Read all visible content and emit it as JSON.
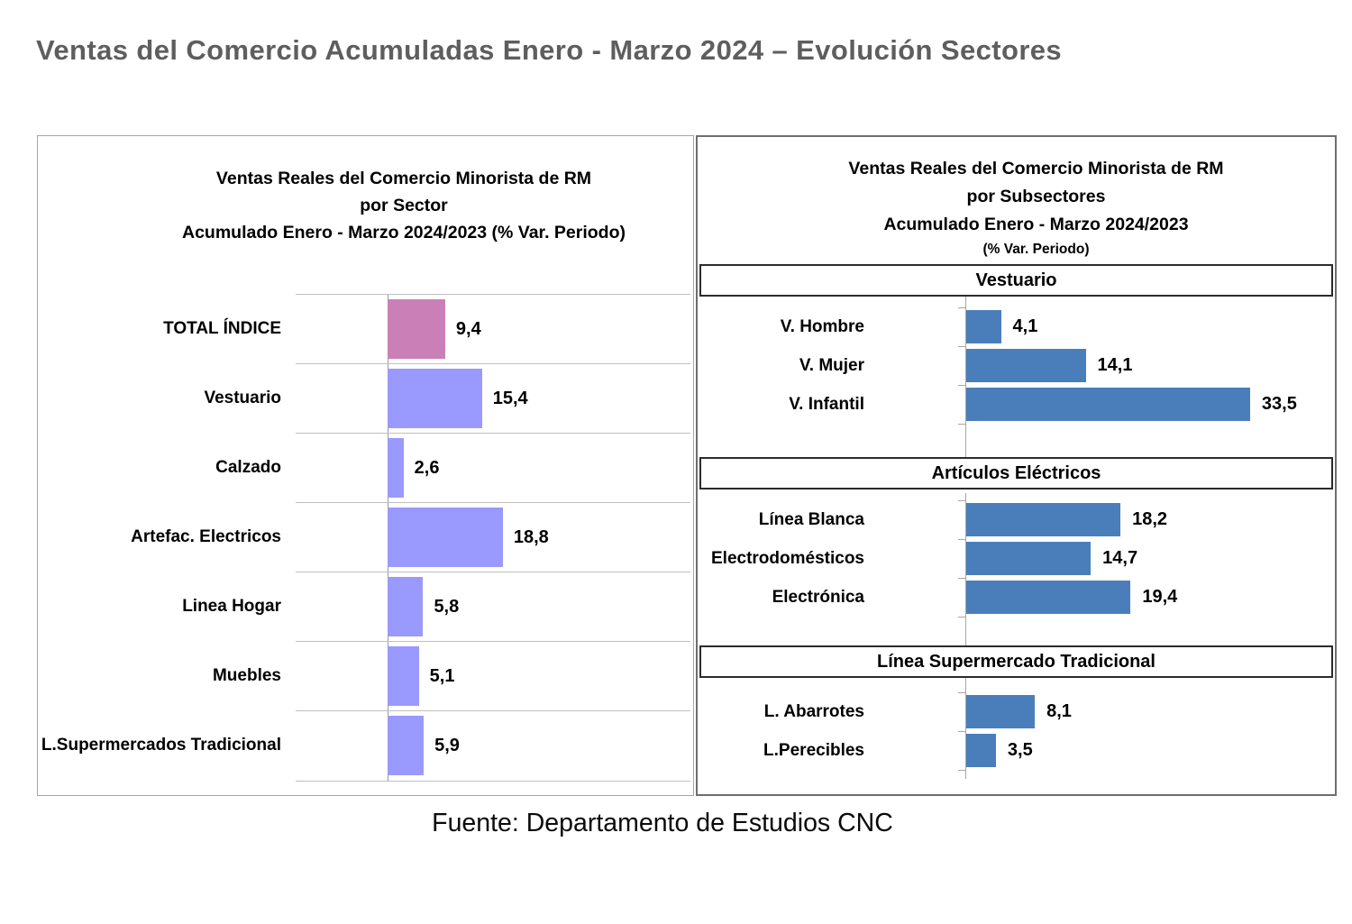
{
  "page": {
    "main_title": "Ventas del Comercio Acumuladas Enero - Marzo 2024 – Evolución Sectores",
    "footer": "Fuente: Departamento de Estudios CNC"
  },
  "colors": {
    "main_title_gray": "#5e5e5e",
    "total_index_bar_pink": "#ca80b6",
    "sector_bar_purple": "#9a99fd",
    "subsector_bar_blue": "#4a7ebb",
    "gridline_gray": "#bfbfbf",
    "axis_gray": "#a6a6a6"
  },
  "chart_data": [
    {
      "type": "bar",
      "orientation": "horizontal",
      "title_lines": [
        "Ventas Reales del Comercio Minorista de RM",
        "por Sector",
        "Acumulado Enero - Marzo  2024/2023 (% Var. Periodo)"
      ],
      "categories": [
        "TOTAL ÍNDICE",
        "Vestuario",
        "Calzado",
        "Artefac. Electricos",
        "Linea Hogar",
        "Muebles",
        "L.Supermercados Tradicional"
      ],
      "values": [
        9.4,
        15.4,
        2.6,
        18.8,
        5.8,
        5.1,
        5.9
      ],
      "value_labels": [
        "9,4",
        "15,4",
        "2,6",
        "18,8",
        "5,8",
        "5,1",
        "5,9"
      ],
      "bar_colors": [
        "#ca80b6",
        "#9a99fd",
        "#9a99fd",
        "#9a99fd",
        "#9a99fd",
        "#9a99fd",
        "#9a99fd"
      ],
      "baseline": 0,
      "grid": "row-separators-only",
      "legend": "none",
      "value_format": "decimal-comma"
    },
    {
      "type": "bar",
      "orientation": "horizontal",
      "title_lines": [
        "Ventas Reales del Comercio Minorista de RM",
        "por Subsectores",
        "Acumulado Enero - Marzo  2024/2023",
        "(% Var. Periodo)"
      ],
      "bar_color": "#4a7ebb",
      "baseline": 0,
      "grid": "axis-ticks-only",
      "legend": "none",
      "value_format": "decimal-comma",
      "sections": [
        {
          "header": "Vestuario",
          "categories": [
            "V. Hombre",
            "V. Mujer",
            "V. Infantil"
          ],
          "values": [
            4.1,
            14.1,
            33.5
          ],
          "value_labels": [
            "4,1",
            "14,1",
            "33,5"
          ]
        },
        {
          "header": "Artículos Eléctricos",
          "categories": [
            "Línea Blanca",
            "Electrodomésticos",
            "Electrónica"
          ],
          "values": [
            18.2,
            14.7,
            19.4
          ],
          "value_labels": [
            "18,2",
            "14,7",
            "19,4"
          ]
        },
        {
          "header": "Línea  Supermercado Tradicional",
          "categories": [
            "L. Abarrotes",
            "L.Perecibles"
          ],
          "values": [
            8.1,
            3.5
          ],
          "value_labels": [
            "8,1",
            "3,5"
          ]
        }
      ]
    }
  ]
}
